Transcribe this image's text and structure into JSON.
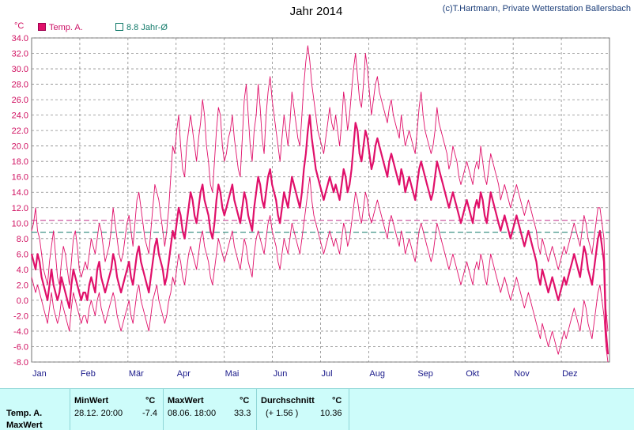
{
  "header": {
    "title": "Jahr 2014",
    "credit": "(c)T.Hartmann, Private Wetterstation Ballersbach"
  },
  "legend": {
    "temp_label": "Temp. A.",
    "avg_label": "8.8 Jahr-Ø"
  },
  "chart_data": {
    "type": "line",
    "title": "Jahr 2014",
    "ylabel": "°C",
    "ylim": [
      -8,
      34
    ],
    "yticks": [
      "34.0",
      "32.0",
      "30.0",
      "28.0",
      "26.0",
      "24.0",
      "22.0",
      "20.0",
      "18.0",
      "16.0",
      "14.0",
      "12.0",
      "10.0",
      "8.0",
      "6.0",
      "4.0",
      "2.0",
      "0.0",
      "-2.0",
      "-4.0",
      "-6.0",
      "-8.0"
    ],
    "months": [
      "Jan",
      "Feb",
      "Mär",
      "Apr",
      "Mai",
      "Jun",
      "Jul",
      "Aug",
      "Sep",
      "Okt",
      "Nov",
      "Dez"
    ],
    "reference_lines": [
      {
        "label": "8.8 Jahr-Ø",
        "value": 8.8,
        "color": "#127a6a"
      },
      {
        "value": 10.36,
        "color": "#c0308a"
      }
    ],
    "series": [
      {
        "name": "Temp. A.",
        "color": "#e0106a",
        "role": "daily_mean",
        "values": [
          6,
          5,
          4,
          6,
          5,
          3,
          2,
          1,
          0,
          2,
          4,
          2,
          1,
          0,
          1,
          3,
          2,
          1,
          0,
          -1,
          2,
          4,
          3,
          2,
          1,
          0,
          1,
          1,
          0,
          2,
          3,
          2,
          1,
          4,
          5,
          3,
          2,
          1,
          2,
          3,
          4,
          6,
          5,
          3,
          2,
          1,
          2,
          3,
          4,
          5,
          3,
          2,
          4,
          6,
          7,
          5,
          4,
          3,
          2,
          1,
          3,
          5,
          7,
          8,
          6,
          5,
          4,
          2,
          3,
          5,
          7,
          9,
          8,
          10,
          12,
          11,
          9,
          8,
          10,
          12,
          14,
          13,
          11,
          10,
          12,
          14,
          15,
          13,
          12,
          11,
          9,
          8,
          10,
          13,
          15,
          14,
          12,
          11,
          12,
          13,
          14,
          15,
          13,
          12,
          11,
          10,
          12,
          14,
          13,
          11,
          10,
          9,
          12,
          14,
          16,
          15,
          13,
          12,
          14,
          16,
          17,
          15,
          14,
          13,
          11,
          10,
          12,
          14,
          13,
          12,
          14,
          16,
          15,
          14,
          13,
          12,
          14,
          17,
          19,
          22,
          24,
          21,
          19,
          17,
          16,
          15,
          14,
          13,
          14,
          15,
          16,
          15,
          14,
          15,
          14,
          13,
          15,
          17,
          16,
          14,
          15,
          17,
          20,
          23,
          22,
          19,
          18,
          20,
          22,
          21,
          19,
          17,
          18,
          20,
          21,
          20,
          19,
          18,
          17,
          16,
          18,
          19,
          18,
          17,
          16,
          15,
          17,
          16,
          14,
          15,
          16,
          15,
          14,
          13,
          15,
          17,
          18,
          17,
          16,
          15,
          14,
          13,
          14,
          16,
          18,
          17,
          16,
          15,
          14,
          13,
          12,
          13,
          14,
          13,
          12,
          11,
          10,
          11,
          12,
          13,
          12,
          11,
          10,
          12,
          13,
          12,
          14,
          13,
          11,
          10,
          12,
          14,
          13,
          12,
          11,
          10,
          9,
          10,
          11,
          10,
          9,
          8,
          9,
          10,
          11,
          10,
          9,
          8,
          7,
          8,
          9,
          8,
          7,
          6,
          5,
          3,
          2,
          4,
          3,
          2,
          1,
          2,
          3,
          2,
          1,
          0,
          1,
          2,
          3,
          2,
          3,
          4,
          5,
          6,
          5,
          4,
          3,
          5,
          7,
          6,
          4,
          3,
          2,
          4,
          6,
          8,
          9,
          7,
          5,
          -4,
          -7
        ]
      },
      {
        "name": "",
        "color": "#e0106a",
        "role": "daily_max",
        "values": [
          9,
          10,
          12,
          9,
          8,
          6,
          4,
          3,
          2,
          5,
          7,
          9,
          6,
          3,
          2,
          5,
          7,
          6,
          4,
          2,
          5,
          8,
          9,
          7,
          4,
          3,
          4,
          5,
          4,
          6,
          8,
          7,
          6,
          8,
          10,
          9,
          7,
          5,
          6,
          7,
          9,
          12,
          10,
          8,
          6,
          5,
          6,
          8,
          10,
          11,
          9,
          7,
          10,
          13,
          14,
          12,
          10,
          8,
          7,
          6,
          9,
          12,
          15,
          14,
          13,
          11,
          9,
          7,
          9,
          12,
          16,
          20,
          19,
          22,
          24,
          20,
          17,
          16,
          20,
          22,
          24,
          22,
          20,
          18,
          21,
          23,
          26,
          24,
          20,
          18,
          15,
          14,
          18,
          22,
          25,
          24,
          20,
          18,
          19,
          21,
          22,
          24,
          21,
          19,
          17,
          16,
          21,
          26,
          28,
          24,
          20,
          18,
          22,
          24,
          28,
          25,
          21,
          19,
          24,
          27,
          29,
          26,
          24,
          22,
          20,
          18,
          21,
          24,
          22,
          20,
          23,
          27,
          25,
          23,
          21,
          20,
          24,
          28,
          31,
          33,
          31,
          28,
          26,
          24,
          22,
          21,
          20,
          19,
          21,
          23,
          25,
          23,
          22,
          24,
          22,
          20,
          23,
          27,
          25,
          22,
          24,
          27,
          30,
          32,
          29,
          26,
          25,
          28,
          32,
          30,
          27,
          24,
          26,
          28,
          29,
          27,
          26,
          25,
          24,
          23,
          25,
          26,
          24,
          23,
          22,
          21,
          24,
          22,
          20,
          21,
          22,
          21,
          20,
          19,
          22,
          25,
          27,
          24,
          22,
          21,
          20,
          19,
          20,
          22,
          25,
          23,
          22,
          21,
          20,
          19,
          17,
          18,
          20,
          19,
          18,
          16,
          15,
          16,
          17,
          18,
          17,
          16,
          15,
          17,
          18,
          17,
          20,
          18,
          16,
          15,
          17,
          19,
          18,
          17,
          16,
          15,
          13,
          14,
          15,
          14,
          13,
          12,
          13,
          14,
          15,
          14,
          13,
          12,
          11,
          12,
          13,
          12,
          11,
          10,
          9,
          7,
          6,
          8,
          7,
          6,
          5,
          6,
          7,
          6,
          5,
          4,
          5,
          6,
          7,
          6,
          7,
          8,
          9,
          10,
          9,
          8,
          7,
          9,
          11,
          10,
          8,
          7,
          6,
          8,
          10,
          12,
          12,
          10,
          8,
          -1,
          -4
        ]
      },
      {
        "name": "",
        "color": "#e0106a",
        "role": "daily_min",
        "values": [
          3,
          2,
          1,
          2,
          1,
          0,
          -1,
          -2,
          -3,
          -1,
          1,
          -1,
          -2,
          -3,
          -2,
          0,
          -1,
          -2,
          -3,
          -4,
          -1,
          1,
          0,
          -1,
          -2,
          -3,
          -2,
          -2,
          -3,
          -1,
          0,
          -1,
          -2,
          0,
          1,
          -1,
          -2,
          -3,
          -2,
          -1,
          0,
          1,
          0,
          -2,
          -3,
          -4,
          -3,
          -2,
          -1,
          0,
          -2,
          -3,
          -1,
          1,
          2,
          0,
          -1,
          -2,
          -3,
          -4,
          -2,
          0,
          1,
          2,
          0,
          -1,
          -2,
          -3,
          -2,
          0,
          1,
          3,
          2,
          4,
          6,
          5,
          3,
          2,
          4,
          6,
          7,
          6,
          5,
          4,
          6,
          8,
          9,
          7,
          6,
          5,
          3,
          2,
          4,
          6,
          8,
          7,
          6,
          5,
          6,
          7,
          8,
          9,
          7,
          6,
          5,
          4,
          6,
          8,
          7,
          5,
          4,
          3,
          6,
          8,
          9,
          8,
          7,
          6,
          8,
          10,
          11,
          9,
          8,
          7,
          5,
          4,
          6,
          8,
          7,
          6,
          8,
          10,
          9,
          8,
          7,
          6,
          8,
          10,
          12,
          14,
          16,
          13,
          11,
          10,
          9,
          8,
          7,
          6,
          7,
          8,
          9,
          8,
          7,
          8,
          7,
          6,
          8,
          10,
          9,
          7,
          8,
          10,
          12,
          14,
          13,
          11,
          10,
          12,
          14,
          13,
          11,
          10,
          11,
          12,
          13,
          12,
          11,
          10,
          9,
          8,
          10,
          11,
          10,
          9,
          8,
          7,
          9,
          8,
          6,
          7,
          8,
          7,
          6,
          5,
          7,
          9,
          10,
          9,
          8,
          7,
          6,
          5,
          6,
          8,
          10,
          9,
          8,
          7,
          6,
          5,
          4,
          5,
          6,
          5,
          4,
          3,
          2,
          3,
          4,
          5,
          4,
          3,
          2,
          4,
          5,
          4,
          6,
          5,
          3,
          2,
          4,
          6,
          5,
          4,
          3,
          2,
          1,
          2,
          3,
          2,
          1,
          0,
          1,
          2,
          3,
          2,
          1,
          0,
          -1,
          0,
          1,
          0,
          -1,
          -2,
          -3,
          -4,
          -5,
          -3,
          -4,
          -5,
          -6,
          -5,
          -4,
          -5,
          -6,
          -7,
          -6,
          -5,
          -4,
          -5,
          -4,
          -3,
          -2,
          -1,
          -2,
          -3,
          -4,
          -2,
          0,
          -1,
          -3,
          -4,
          -5,
          -3,
          -1,
          1,
          2,
          0,
          -2,
          -6,
          -8
        ]
      }
    ]
  },
  "summary_table": {
    "row_label": "Temp. A.",
    "row_label_2": "MaxWert",
    "min_header": "MinWert",
    "min_unit": "°C",
    "min_time": "28.12.  20:00",
    "min_value": "-7.4",
    "max_header": "MaxWert",
    "max_unit": "°C",
    "max_time": "08.06.  18:00",
    "max_value": "33.3",
    "avg_header": "Durchschnitt",
    "avg_unit": "°C",
    "avg_delta": "(+ 1.56 )",
    "avg_value": "10.36"
  }
}
